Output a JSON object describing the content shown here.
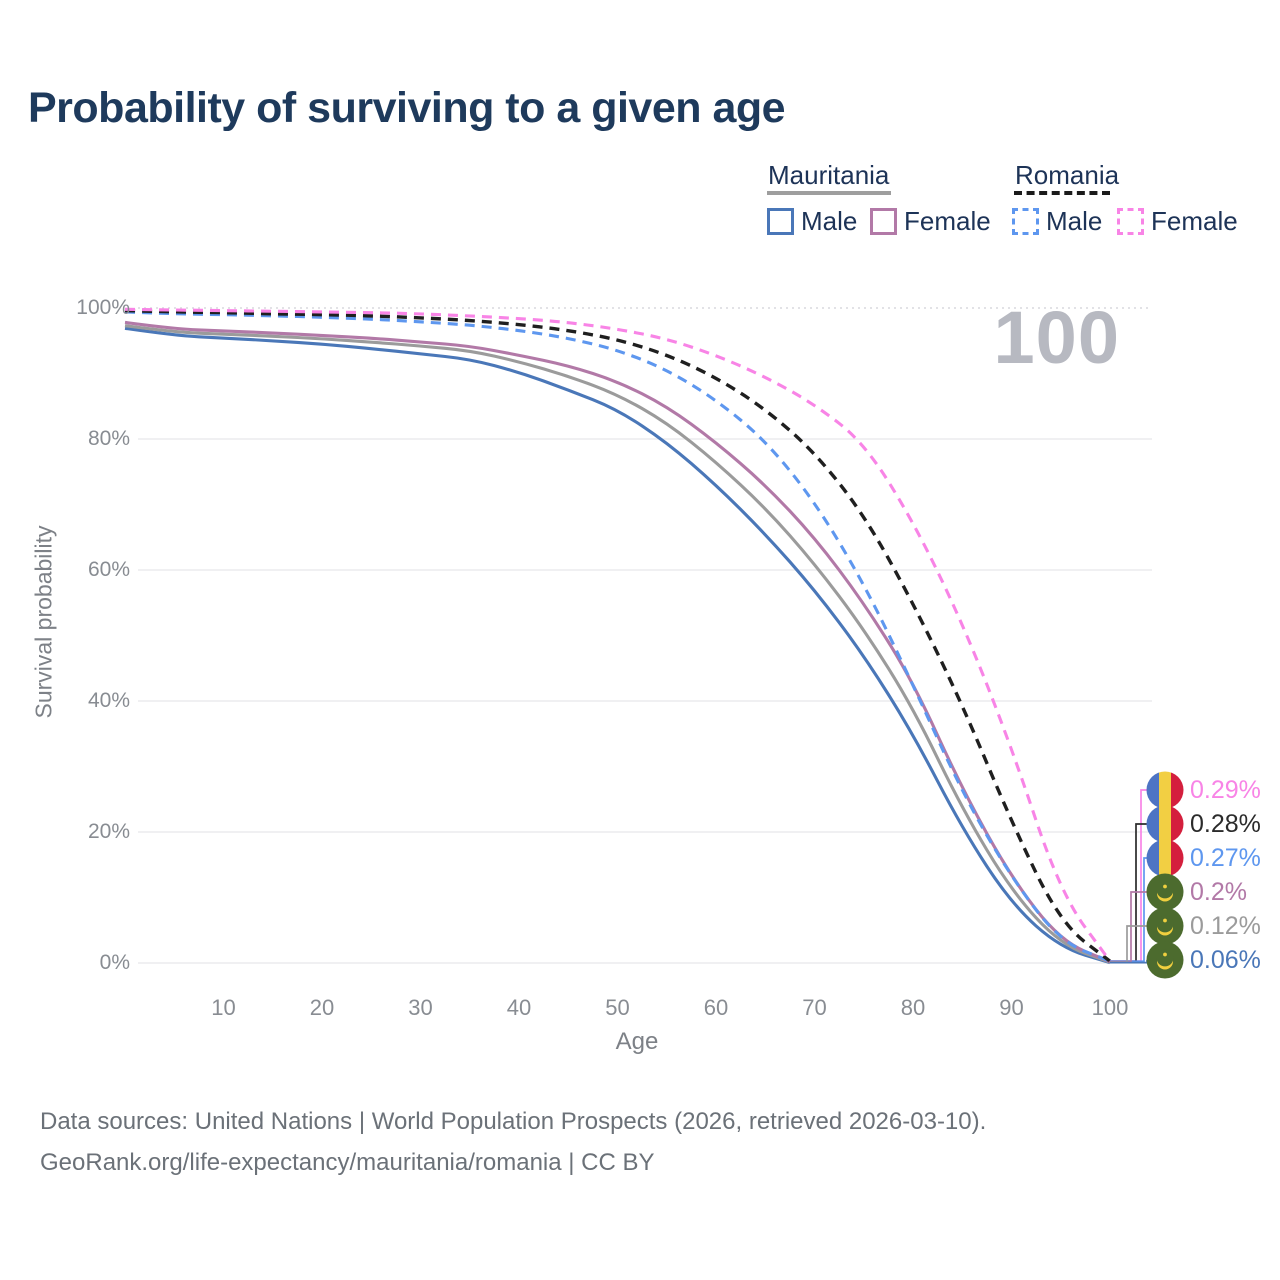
{
  "title": "Probability of surviving to a given age",
  "watermark_age": "100",
  "legend": {
    "groups": [
      {
        "name": "Mauritania",
        "line_style": "solid",
        "underline_color": "#9e9e9e",
        "items": [
          {
            "label": "Male",
            "color": "#4a77b8"
          },
          {
            "label": "Female",
            "color": "#b279a7"
          }
        ]
      },
      {
        "name": "Romania",
        "line_style": "dashed",
        "underline_color": "#1b1b1b",
        "items": [
          {
            "label": "Male",
            "color": "#5e97ef"
          },
          {
            "label": "Female",
            "color": "#f884e6"
          }
        ]
      }
    ]
  },
  "chart_data": {
    "type": "line",
    "title": "Probability of surviving to a given age",
    "xlabel": "Age",
    "ylabel": "Survival probability",
    "xlim": [
      0,
      100
    ],
    "ylim": [
      0,
      100
    ],
    "grid": true,
    "legend_position": "top-right",
    "x_ticks": [
      10,
      20,
      30,
      40,
      50,
      60,
      70,
      80,
      90,
      100
    ],
    "y_ticks": [
      {
        "value": 0,
        "label": "0%"
      },
      {
        "value": 20,
        "label": "20%"
      },
      {
        "value": 40,
        "label": "40%"
      },
      {
        "value": 60,
        "label": "60%"
      },
      {
        "value": 80,
        "label": "80%"
      },
      {
        "value": 100,
        "label": "100%"
      }
    ],
    "x": [
      0,
      5,
      10,
      15,
      20,
      25,
      30,
      35,
      40,
      45,
      50,
      55,
      60,
      65,
      70,
      75,
      80,
      85,
      90,
      95,
      100
    ],
    "series": [
      {
        "name": "Mauritania Male",
        "country": "Mauritania",
        "sex": "Male",
        "color": "#4a77b8",
        "dash": "solid",
        "values": [
          96.9,
          95.8,
          95.4,
          95.0,
          94.5,
          93.8,
          93.0,
          92.2,
          90.2,
          87.5,
          84.5,
          79.5,
          73.0,
          65.5,
          57.0,
          47.0,
          35.0,
          20.5,
          9.0,
          2.3,
          0.06
        ]
      },
      {
        "name": "Mauritania Both sexes",
        "country": "Mauritania",
        "sex": "Both sexes",
        "color": "#9b9b9b",
        "dash": "solid",
        "values": [
          97.3,
          96.3,
          96.0,
          95.7,
          95.3,
          94.8,
          94.2,
          93.5,
          91.8,
          89.6,
          86.8,
          82.5,
          76.5,
          69.5,
          61.0,
          51.0,
          39.0,
          23.5,
          11.0,
          2.8,
          0.12
        ]
      },
      {
        "name": "Mauritania Female",
        "country": "Mauritania",
        "sex": "Female",
        "color": "#b279a7",
        "dash": "solid",
        "values": [
          97.8,
          96.8,
          96.5,
          96.2,
          95.8,
          95.4,
          94.8,
          94.2,
          92.8,
          91.2,
          88.8,
          85.0,
          79.5,
          73.0,
          65.0,
          55.0,
          43.0,
          26.5,
          13.0,
          3.3,
          0.2
        ]
      },
      {
        "name": "Romania Male",
        "country": "Romania",
        "sex": "Male",
        "color": "#5e97ef",
        "dash": "dashed",
        "values": [
          99.4,
          99.1,
          99.0,
          98.8,
          98.6,
          98.3,
          97.9,
          97.4,
          96.6,
          95.4,
          93.6,
          90.6,
          86.0,
          79.8,
          70.5,
          58.0,
          42.5,
          26.0,
          13.0,
          3.2,
          0.27
        ]
      },
      {
        "name": "Romania Both sexes",
        "country": "Romania",
        "sex": "Both sexes",
        "color": "#1f1f1f",
        "dash": "dashed",
        "values": [
          99.6,
          99.4,
          99.3,
          99.1,
          99.0,
          98.8,
          98.5,
          98.1,
          97.5,
          96.6,
          95.2,
          92.9,
          89.4,
          84.6,
          78.0,
          68.5,
          55.0,
          39.5,
          21.5,
          6.0,
          0.28
        ]
      },
      {
        "name": "Romania Female",
        "country": "Romania",
        "sex": "Female",
        "color": "#f884e6",
        "dash": "dashed",
        "values": [
          99.8,
          99.7,
          99.6,
          99.5,
          99.4,
          99.3,
          99.1,
          98.8,
          98.4,
          97.8,
          96.8,
          95.3,
          92.8,
          89.5,
          85.3,
          79.5,
          67.5,
          52.0,
          33.0,
          10.5,
          0.29
        ]
      }
    ],
    "end_labels": [
      {
        "series": "Romania Female",
        "flag": "romania",
        "label": "0.29%",
        "color": "#f884e6"
      },
      {
        "series": "Romania Both sexes",
        "flag": "romania",
        "label": "0.28%",
        "color": "#2b2b2b"
      },
      {
        "series": "Romania Male",
        "flag": "romania",
        "label": "0.27%",
        "color": "#5e97ef"
      },
      {
        "series": "Mauritania Female",
        "flag": "mauritania",
        "label": "0.2%",
        "color": "#b279a7"
      },
      {
        "series": "Mauritania Both sexes",
        "flag": "mauritania",
        "label": "0.12%",
        "color": "#9b9b9b"
      },
      {
        "series": "Mauritania Male",
        "flag": "mauritania",
        "label": "0.06%",
        "color": "#4a77b8"
      }
    ]
  },
  "flag_colors": {
    "romania": {
      "blue": "#4d74c4",
      "yellow": "#f2cf43",
      "red": "#d41f3d"
    },
    "mauritania": {
      "green": "#4c6b2e",
      "gold": "#f0cf3f"
    }
  },
  "footer": {
    "line1": "Data sources: United Nations | World Population Prospects (2026, retrieved 2026-03-10).",
    "line2": "GeoRank.org/life-expectancy/mauritania/romania | CC BY"
  }
}
